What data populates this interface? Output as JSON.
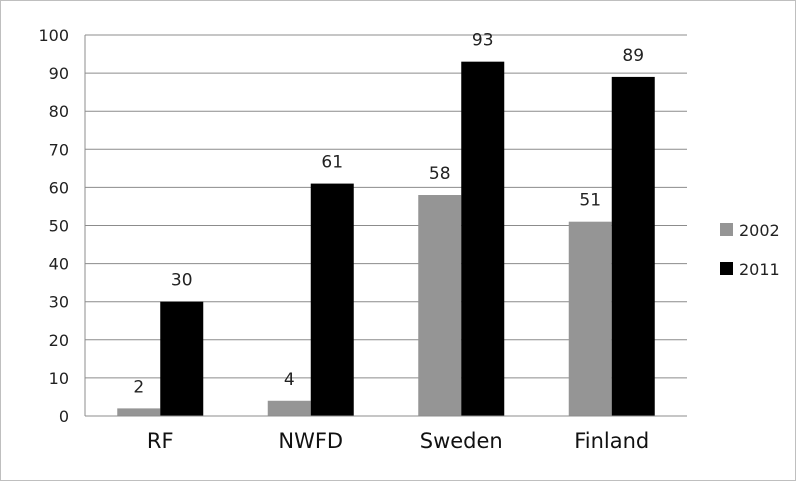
{
  "chart_data": {
    "type": "bar",
    "categories": [
      "RF",
      "NWFD",
      "Sweden",
      "Finland"
    ],
    "series": [
      {
        "name": "2002",
        "values": [
          2,
          4,
          58,
          51
        ],
        "color": "#959595"
      },
      {
        "name": "2011",
        "values": [
          30,
          61,
          93,
          89
        ],
        "color": "#000000"
      }
    ],
    "ylim": [
      0,
      100
    ],
    "yticks": [
      "0",
      "10",
      "20",
      "30",
      "40",
      "50",
      "60",
      "70",
      "80",
      "90",
      "100"
    ],
    "grid": true,
    "legend_position": "right",
    "title": "",
    "xlabel": "",
    "ylabel": ""
  }
}
